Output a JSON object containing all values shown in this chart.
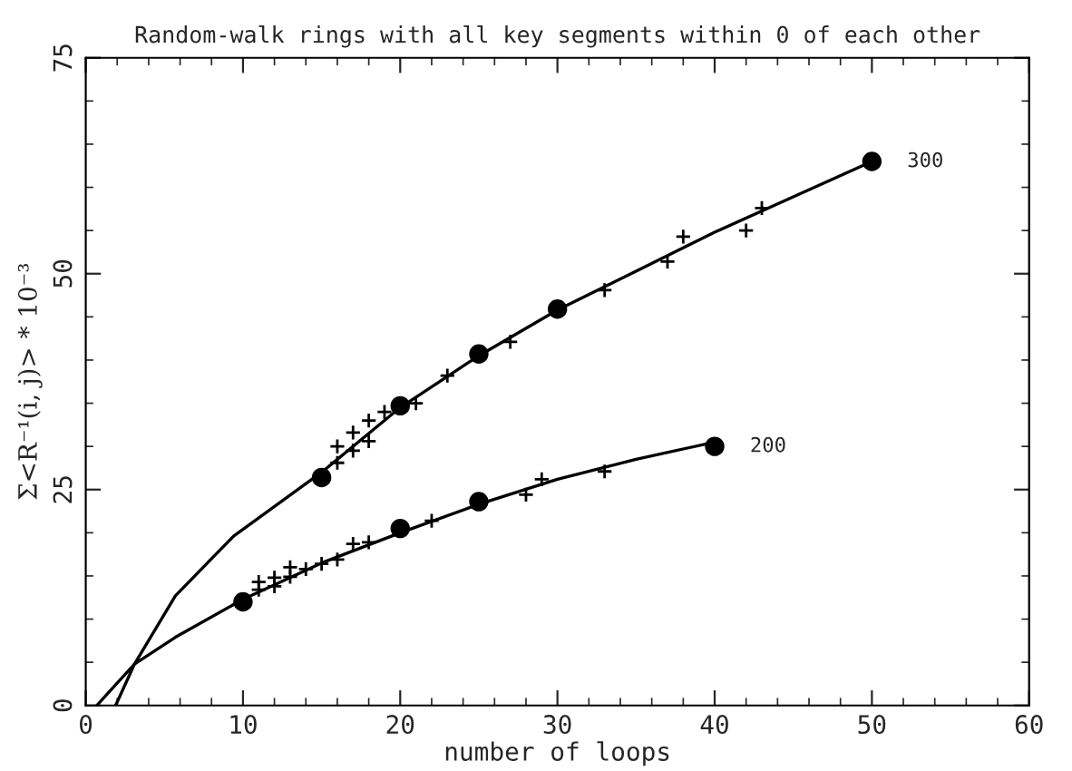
{
  "chart_data": {
    "type": "scatter",
    "title": "Random-walk rings with all key segments within 0 of each other",
    "xlabel": "number of loops",
    "ylabel": "Σ<R⁻¹(i, j)> * 10⁻³",
    "xlim": [
      0,
      60
    ],
    "xticks": [
      0,
      10,
      20,
      30,
      40,
      50,
      60
    ],
    "ylim": [
      0,
      75
    ],
    "yticks": [
      0,
      25,
      50,
      75
    ],
    "grid": false,
    "legend": false,
    "series": [
      {
        "type": "line",
        "color": "#000000",
        "marker": "none",
        "x": [
          1.9,
          3.1,
          5.7,
          9.4,
          15,
          20,
          25,
          30,
          35,
          40,
          45,
          50
        ],
        "values": [
          0,
          4.8,
          12.7,
          19.6,
          27,
          34.5,
          40.5,
          45.8,
          50.3,
          54.8,
          58.9,
          63
        ]
      },
      {
        "type": "line",
        "color": "#000000",
        "marker": "none",
        "x": [
          0.7,
          3.1,
          5.7,
          10,
          15,
          20,
          25,
          30,
          35,
          40
        ],
        "values": [
          0,
          4.8,
          7.9,
          12.3,
          16.5,
          20,
          23.3,
          26.2,
          28.5,
          30.5
        ]
      },
      {
        "color": "#000000",
        "marker": "circle",
        "x": [
          15,
          20,
          25,
          30,
          50
        ],
        "values": [
          26.4,
          34.7,
          40.7,
          45.9,
          63
        ]
      },
      {
        "color": "#000000",
        "marker": "circle",
        "x": [
          10,
          20,
          25,
          40
        ],
        "values": [
          12,
          20.5,
          23.6,
          30
        ]
      },
      {
        "color": "#000000",
        "marker": "cross",
        "x": [
          16,
          16,
          17,
          17,
          18,
          18,
          19,
          21,
          23,
          27,
          33,
          37,
          38,
          42,
          43
        ],
        "values": [
          30,
          28.1,
          31.6,
          29.5,
          33,
          30.6,
          34,
          35,
          38.2,
          42.1,
          48.1,
          51.4,
          54.3,
          55,
          57.6
        ]
      },
      {
        "color": "#000000",
        "marker": "cross",
        "x": [
          11,
          11,
          12,
          12,
          13,
          13,
          14,
          15,
          16,
          17,
          18,
          22,
          28,
          29,
          33
        ],
        "values": [
          14.3,
          13.4,
          14.8,
          13.8,
          16,
          14.9,
          15.8,
          16.4,
          16.9,
          18.7,
          18.9,
          21.4,
          24.4,
          26.2,
          27.1
        ]
      }
    ],
    "annotations": [
      {
        "text": "300",
        "x": 50,
        "y": 63
      },
      {
        "text": "200",
        "x": 40,
        "y": 30
      }
    ]
  }
}
